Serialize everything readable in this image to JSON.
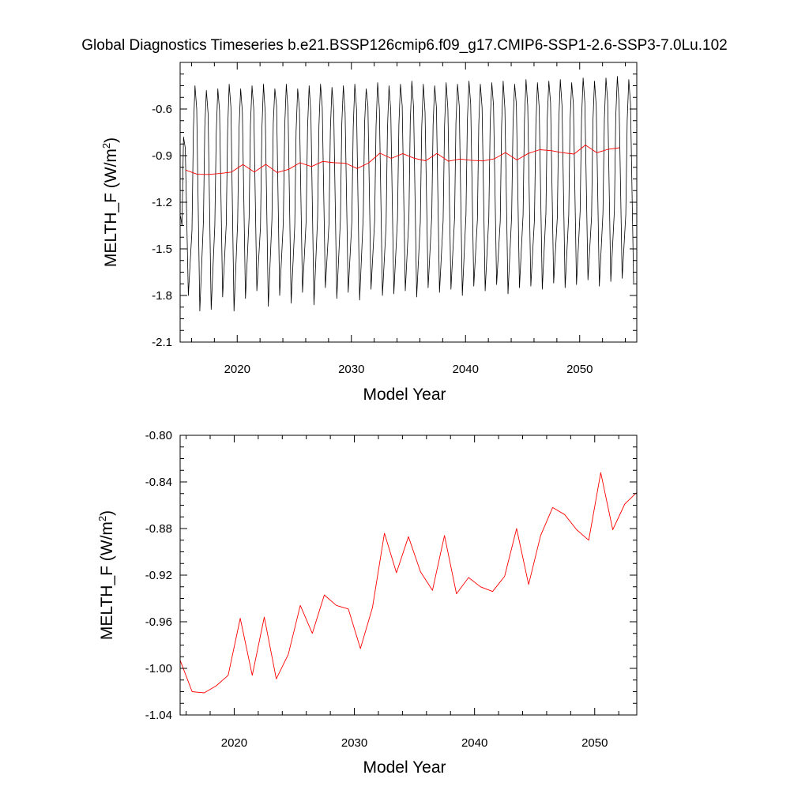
{
  "title": "Global Diagnostics Timeseries b.e21.BSSP126cmip6.f09_g17.CMIP6-SSP1-2.6-SSP3-7.0Lu.102",
  "colors": {
    "monthly": "#000000",
    "annual": "#ff0000",
    "axes": "#000000"
  },
  "chart_data": [
    {
      "type": "line",
      "ylabel_main": "MELTH_F (W/m",
      "ylabel_sup": "2",
      "ylabel_tail": ")",
      "xlabel": "Model Year",
      "xlim": [
        2015.0,
        2055.0
      ],
      "ylim": [
        -2.1,
        -0.3
      ],
      "yticks": [
        -2.1,
        -1.8,
        -1.5,
        -1.2,
        -0.9,
        -0.6
      ],
      "ytick_labels": [
        "-2.1",
        "-1.8",
        "-1.5",
        "-1.2",
        "-0.9",
        "-0.6"
      ],
      "xticks": [
        2020,
        2030,
        2040,
        2050
      ],
      "xtick_labels": [
        "2020",
        "2030",
        "2040",
        "2050"
      ],
      "series": [
        {
          "key": "monthly",
          "start_year": 2015.0,
          "year_values": [
            [
              -1.29,
              -1.35,
              -0.78,
              -0.85,
              -1.8
            ],
            [
              -1.38,
              -0.73,
              -0.45,
              -0.6,
              -1.9
            ],
            [
              -1.32,
              -0.72,
              -0.48,
              -0.63,
              -1.89
            ],
            [
              -1.35,
              -0.76,
              -0.47,
              -0.61,
              -1.81
            ],
            [
              -1.34,
              -0.74,
              -0.44,
              -0.59,
              -1.9
            ],
            [
              -1.33,
              -0.72,
              -0.47,
              -0.62,
              -1.82
            ],
            [
              -1.3,
              -0.7,
              -0.45,
              -0.6,
              -1.77
            ],
            [
              -1.36,
              -0.73,
              -0.44,
              -0.62,
              -1.87
            ],
            [
              -1.31,
              -0.69,
              -0.47,
              -0.58,
              -1.8
            ],
            [
              -1.33,
              -0.71,
              -0.44,
              -0.61,
              -1.85
            ],
            [
              -1.35,
              -0.74,
              -0.47,
              -0.6,
              -1.78
            ],
            [
              -1.32,
              -0.72,
              -0.45,
              -0.63,
              -1.86
            ],
            [
              -1.3,
              -0.71,
              -0.44,
              -0.59,
              -1.75
            ],
            [
              -1.34,
              -0.73,
              -0.46,
              -0.61,
              -1.82
            ],
            [
              -1.31,
              -0.7,
              -0.45,
              -0.62,
              -1.78
            ],
            [
              -1.33,
              -0.72,
              -0.44,
              -0.6,
              -1.83
            ],
            [
              -1.29,
              -0.69,
              -0.47,
              -0.58,
              -1.76
            ],
            [
              -1.32,
              -0.71,
              -0.43,
              -0.6,
              -1.8
            ],
            [
              -1.35,
              -0.73,
              -0.45,
              -0.61,
              -1.79
            ],
            [
              -1.31,
              -0.7,
              -0.44,
              -0.58,
              -1.77
            ],
            [
              -1.3,
              -0.68,
              -0.42,
              -0.59,
              -1.81
            ],
            [
              -1.33,
              -0.72,
              -0.44,
              -0.62,
              -1.75
            ],
            [
              -1.29,
              -0.7,
              -0.45,
              -0.59,
              -1.78
            ],
            [
              -1.32,
              -0.71,
              -0.43,
              -0.6,
              -1.76
            ],
            [
              -1.3,
              -0.69,
              -0.44,
              -0.58,
              -1.8
            ],
            [
              -1.28,
              -0.67,
              -0.42,
              -0.57,
              -1.74
            ],
            [
              -1.31,
              -0.7,
              -0.44,
              -0.59,
              -1.77
            ],
            [
              -1.3,
              -0.68,
              -0.43,
              -0.58,
              -1.73
            ],
            [
              -1.32,
              -0.71,
              -0.42,
              -0.6,
              -1.79
            ],
            [
              -1.29,
              -0.69,
              -0.44,
              -0.57,
              -1.75
            ],
            [
              -1.28,
              -0.68,
              -0.41,
              -0.58,
              -1.74
            ],
            [
              -1.31,
              -0.7,
              -0.43,
              -0.59,
              -1.76
            ],
            [
              -1.27,
              -0.66,
              -0.42,
              -0.56,
              -1.72
            ],
            [
              -1.3,
              -0.69,
              -0.41,
              -0.58,
              -1.75
            ],
            [
              -1.28,
              -0.67,
              -0.43,
              -0.57,
              -1.73
            ],
            [
              -1.26,
              -0.66,
              -0.4,
              -0.56,
              -1.7
            ],
            [
              -1.29,
              -0.68,
              -0.42,
              -0.58,
              -1.74
            ],
            [
              -1.27,
              -0.66,
              -0.4,
              -0.55,
              -1.71
            ],
            [
              -1.25,
              -0.65,
              -0.39,
              -0.56,
              -1.69
            ],
            [
              -1.28,
              -0.67,
              -0.41,
              -0.57,
              -1.72
            ]
          ]
        },
        {
          "key": "annual",
          "x": [
            2015.5,
            2016.5,
            2017.5,
            2018.5,
            2019.5,
            2020.5,
            2021.5,
            2022.5,
            2023.5,
            2024.5,
            2025.5,
            2026.5,
            2027.5,
            2028.5,
            2029.5,
            2030.5,
            2031.5,
            2032.5,
            2033.5,
            2034.5,
            2035.5,
            2036.5,
            2037.5,
            2038.5,
            2039.5,
            2040.5,
            2041.5,
            2042.5,
            2043.5,
            2044.5,
            2045.5,
            2046.5,
            2047.5,
            2048.5,
            2049.5,
            2050.5,
            2051.5,
            2052.5,
            2053.5
          ],
          "y": [
            -0.993,
            -1.02,
            -1.021,
            -1.015,
            -1.006,
            -0.957,
            -1.006,
            -0.956,
            -1.009,
            -0.988,
            -0.946,
            -0.97,
            -0.937,
            -0.946,
            -0.949,
            -0.983,
            -0.948,
            -0.884,
            -0.918,
            -0.887,
            -0.917,
            -0.933,
            -0.886,
            -0.936,
            -0.922,
            -0.93,
            -0.934,
            -0.921,
            -0.88,
            -0.928,
            -0.886,
            -0.862,
            -0.868,
            -0.881,
            -0.89,
            -0.832,
            -0.881,
            -0.859,
            -0.849
          ]
        }
      ]
    },
    {
      "type": "line",
      "ylabel_main": "MELTH_F (W/m",
      "ylabel_sup": "2",
      "ylabel_tail": ")",
      "xlabel": "Model Year",
      "xlim": [
        2015.5,
        2053.5
      ],
      "ylim": [
        -1.04,
        -0.8
      ],
      "yticks": [
        -1.04,
        -1.0,
        -0.96,
        -0.92,
        -0.88,
        -0.84,
        -0.8
      ],
      "ytick_labels": [
        "-1.04",
        "-1.00",
        "-0.96",
        "-0.92",
        "-0.88",
        "-0.84",
        "-0.80"
      ],
      "xticks": [
        2020,
        2030,
        2040,
        2050
      ],
      "xtick_labels": [
        "2020",
        "2030",
        "2040",
        "2050"
      ],
      "series": [
        {
          "key": "annual",
          "x": [
            2015.5,
            2016.5,
            2017.5,
            2018.5,
            2019.5,
            2020.5,
            2021.5,
            2022.5,
            2023.5,
            2024.5,
            2025.5,
            2026.5,
            2027.5,
            2028.5,
            2029.5,
            2030.5,
            2031.5,
            2032.5,
            2033.5,
            2034.5,
            2035.5,
            2036.5,
            2037.5,
            2038.5,
            2039.5,
            2040.5,
            2041.5,
            2042.5,
            2043.5,
            2044.5,
            2045.5,
            2046.5,
            2047.5,
            2048.5,
            2049.5,
            2050.5,
            2051.5,
            2052.5,
            2053.5
          ],
          "y": [
            -0.993,
            -1.02,
            -1.021,
            -1.015,
            -1.006,
            -0.957,
            -1.006,
            -0.956,
            -1.009,
            -0.988,
            -0.946,
            -0.97,
            -0.937,
            -0.946,
            -0.949,
            -0.983,
            -0.948,
            -0.884,
            -0.918,
            -0.887,
            -0.917,
            -0.933,
            -0.886,
            -0.936,
            -0.922,
            -0.93,
            -0.934,
            -0.921,
            -0.88,
            -0.928,
            -0.886,
            -0.862,
            -0.868,
            -0.881,
            -0.89,
            -0.832,
            -0.881,
            -0.859,
            -0.849
          ]
        }
      ]
    }
  ]
}
